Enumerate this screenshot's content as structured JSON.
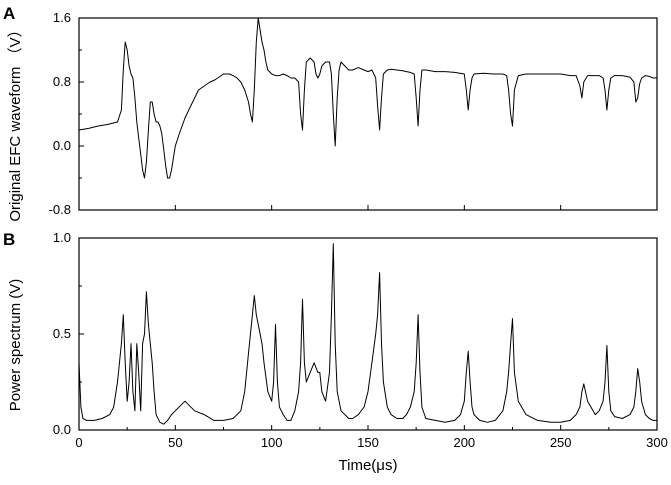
{
  "chart_data": [
    {
      "type": "line",
      "panel_label": "A",
      "ylabel": "Original EFC waveform （V）",
      "xlim": [
        0,
        300
      ],
      "ylim": [
        -0.8,
        1.6
      ],
      "yticks": [
        "1.6",
        "0.8",
        "0.0",
        "-0.8"
      ],
      "grid": false,
      "series": [
        {
          "x": [
            0,
            5,
            10,
            15,
            20,
            22,
            23,
            24,
            25,
            26,
            27,
            28,
            29,
            30,
            31,
            32,
            33,
            34,
            35,
            36,
            37,
            38,
            39,
            40,
            41,
            42,
            43,
            44,
            45,
            46,
            47,
            48,
            49,
            50,
            52,
            55,
            58,
            60,
            62,
            65,
            68,
            70,
            72,
            75,
            78,
            80,
            82,
            84,
            86,
            88,
            89,
            90,
            91,
            92,
            93,
            94,
            95,
            96,
            97,
            98,
            100,
            102,
            104,
            106,
            108,
            110,
            112,
            114,
            115,
            116,
            117,
            118,
            120,
            122,
            123,
            124,
            125,
            126,
            128,
            130,
            131,
            132,
            133,
            134,
            135,
            136,
            138,
            140,
            142,
            145,
            148,
            150,
            152,
            154,
            155,
            156,
            157,
            158,
            160,
            162,
            165,
            168,
            170,
            172,
            174,
            175,
            176,
            177,
            178,
            180,
            185,
            190,
            195,
            200,
            201,
            202,
            203,
            204,
            205,
            210,
            215,
            220,
            222,
            223,
            224,
            225,
            226,
            228,
            232,
            238,
            245,
            250,
            255,
            258,
            260,
            261,
            262,
            264,
            268,
            270,
            272,
            273,
            274,
            275,
            276,
            278,
            282,
            286,
            288,
            289,
            290,
            291,
            292,
            294,
            296,
            298,
            300
          ],
          "y": [
            0.2,
            0.22,
            0.25,
            0.27,
            0.3,
            0.45,
            0.95,
            1.3,
            1.2,
            1.0,
            0.9,
            0.85,
            0.6,
            0.3,
            0.1,
            -0.1,
            -0.3,
            -0.4,
            -0.2,
            0.2,
            0.55,
            0.55,
            0.4,
            0.3,
            0.3,
            0.25,
            0.15,
            -0.05,
            -0.25,
            -0.4,
            -0.4,
            -0.3,
            -0.15,
            0.0,
            0.15,
            0.35,
            0.5,
            0.6,
            0.7,
            0.75,
            0.8,
            0.82,
            0.85,
            0.9,
            0.9,
            0.88,
            0.85,
            0.8,
            0.7,
            0.55,
            0.4,
            0.3,
            0.7,
            1.3,
            1.6,
            1.45,
            1.3,
            1.2,
            1.05,
            0.95,
            0.9,
            0.88,
            0.88,
            0.9,
            0.88,
            0.85,
            0.85,
            0.8,
            0.4,
            0.2,
            0.7,
            1.05,
            1.1,
            1.05,
            0.9,
            0.85,
            0.9,
            1.0,
            1.05,
            1.05,
            0.9,
            0.4,
            0.0,
            0.6,
            0.95,
            1.05,
            1.0,
            0.95,
            0.95,
            0.98,
            0.95,
            0.93,
            0.95,
            0.85,
            0.5,
            0.2,
            0.6,
            0.9,
            0.95,
            0.96,
            0.95,
            0.94,
            0.93,
            0.92,
            0.9,
            0.6,
            0.25,
            0.7,
            0.95,
            0.95,
            0.93,
            0.93,
            0.92,
            0.9,
            0.7,
            0.45,
            0.7,
            0.85,
            0.9,
            0.91,
            0.9,
            0.9,
            0.88,
            0.7,
            0.4,
            0.25,
            0.7,
            0.88,
            0.9,
            0.9,
            0.9,
            0.9,
            0.88,
            0.88,
            0.75,
            0.6,
            0.8,
            0.88,
            0.88,
            0.88,
            0.85,
            0.7,
            0.45,
            0.7,
            0.85,
            0.88,
            0.88,
            0.86,
            0.8,
            0.55,
            0.6,
            0.78,
            0.85,
            0.88,
            0.87,
            0.85,
            0.85
          ]
        }
      ]
    },
    {
      "type": "line",
      "panel_label": "B",
      "ylabel": "Power spectrum (V)",
      "xlabel": "Time(μs)",
      "xlim": [
        0,
        300
      ],
      "ylim": [
        0,
        1.0
      ],
      "xticks": [
        "0",
        "50",
        "100",
        "150",
        "200",
        "250",
        "300"
      ],
      "yticks": [
        "1.0",
        "0.5",
        "0.0"
      ],
      "grid": false,
      "series": [
        {
          "x": [
            0,
            1,
            2,
            4,
            8,
            12,
            16,
            18,
            20,
            22,
            23,
            24,
            25,
            26,
            27,
            28,
            29,
            30,
            31,
            32,
            33,
            34,
            35,
            36,
            37,
            38,
            39,
            40,
            42,
            44,
            46,
            48,
            50,
            55,
            60,
            65,
            70,
            75,
            80,
            84,
            86,
            88,
            90,
            91,
            92,
            93,
            94,
            95,
            96,
            98,
            100,
            101,
            102,
            103,
            104,
            106,
            108,
            110,
            112,
            114,
            115,
            116,
            117,
            118,
            120,
            122,
            124,
            125,
            126,
            128,
            130,
            131,
            132,
            133,
            134,
            136,
            138,
            140,
            142,
            145,
            148,
            150,
            152,
            154,
            155,
            156,
            157,
            158,
            160,
            162,
            165,
            168,
            170,
            172,
            174,
            175,
            176,
            177,
            178,
            180,
            185,
            190,
            195,
            198,
            200,
            201,
            202,
            203,
            204,
            205,
            208,
            212,
            216,
            220,
            222,
            223,
            224,
            225,
            226,
            228,
            232,
            238,
            245,
            250,
            255,
            258,
            260,
            261,
            262,
            264,
            268,
            270,
            272,
            273,
            274,
            275,
            276,
            278,
            282,
            286,
            288,
            289,
            290,
            291,
            292,
            294,
            296,
            298,
            300
          ],
          "y": [
            0.35,
            0.12,
            0.06,
            0.05,
            0.05,
            0.06,
            0.08,
            0.12,
            0.25,
            0.45,
            0.6,
            0.35,
            0.15,
            0.25,
            0.45,
            0.2,
            0.1,
            0.45,
            0.3,
            0.1,
            0.45,
            0.5,
            0.72,
            0.55,
            0.45,
            0.35,
            0.2,
            0.08,
            0.04,
            0.03,
            0.05,
            0.08,
            0.1,
            0.15,
            0.1,
            0.08,
            0.05,
            0.05,
            0.06,
            0.1,
            0.2,
            0.4,
            0.6,
            0.7,
            0.6,
            0.55,
            0.5,
            0.45,
            0.35,
            0.2,
            0.15,
            0.25,
            0.55,
            0.25,
            0.12,
            0.08,
            0.05,
            0.05,
            0.1,
            0.2,
            0.35,
            0.68,
            0.35,
            0.25,
            0.3,
            0.35,
            0.3,
            0.3,
            0.2,
            0.15,
            0.3,
            0.6,
            0.97,
            0.45,
            0.2,
            0.1,
            0.08,
            0.06,
            0.06,
            0.08,
            0.12,
            0.2,
            0.35,
            0.5,
            0.6,
            0.82,
            0.45,
            0.25,
            0.12,
            0.08,
            0.06,
            0.06,
            0.08,
            0.12,
            0.2,
            0.35,
            0.6,
            0.3,
            0.12,
            0.06,
            0.05,
            0.04,
            0.05,
            0.08,
            0.15,
            0.3,
            0.41,
            0.25,
            0.12,
            0.08,
            0.05,
            0.04,
            0.05,
            0.1,
            0.2,
            0.3,
            0.45,
            0.58,
            0.3,
            0.15,
            0.08,
            0.05,
            0.04,
            0.04,
            0.05,
            0.08,
            0.12,
            0.2,
            0.24,
            0.15,
            0.08,
            0.1,
            0.15,
            0.25,
            0.44,
            0.2,
            0.1,
            0.07,
            0.06,
            0.08,
            0.12,
            0.2,
            0.32,
            0.25,
            0.15,
            0.08,
            0.06,
            0.05,
            0.05
          ]
        }
      ]
    }
  ]
}
